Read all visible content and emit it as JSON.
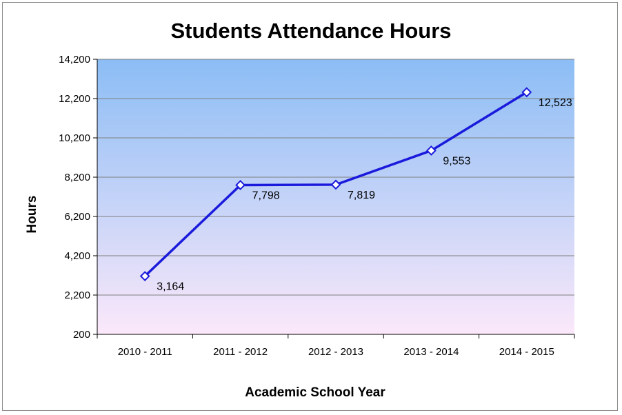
{
  "chart_data": {
    "type": "line",
    "title": "Students Attendance Hours",
    "xlabel": "Academic School Year",
    "ylabel": "Hours",
    "categories": [
      "2010 - 2011",
      "2011 - 2012",
      "2012 - 2013",
      "2013 - 2014",
      "2014 - 2015"
    ],
    "series": [
      {
        "values": [
          3164,
          7798,
          7819,
          9553,
          12523
        ]
      }
    ],
    "data_labels": [
      "3,164",
      "7,798",
      "7,819",
      "9,553",
      "12,523"
    ],
    "y_ticks": [
      200,
      2200,
      4200,
      6200,
      8200,
      10200,
      12200,
      14200
    ],
    "y_tick_labels": [
      "200",
      "2,200",
      "4,200",
      "6,200",
      "8,200",
      "10,200",
      "12,200",
      "14,200"
    ],
    "ylim": [
      200,
      14200
    ],
    "grid": true,
    "legend": "none",
    "colors": {
      "line": "#1a1adc",
      "marker_fill": "#ffffff",
      "plot_top": "#8bbdf5",
      "plot_bottom": "#fbe8fa",
      "gridline": "#7f7f7f"
    }
  }
}
